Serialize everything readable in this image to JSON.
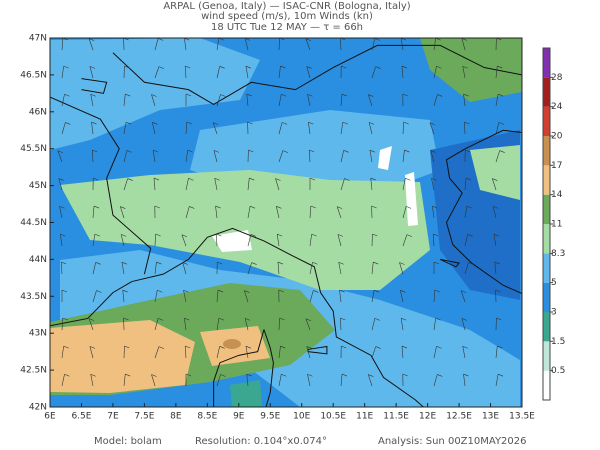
{
  "header": {
    "line1": "ARPAL (Genoa, Italy)  —  ISAC-CNR (Bologna, Italy)",
    "line2": "wind speed (m/s), 10m Winds (kn)",
    "line3": "18 UTC Tue 12 MAY  —  τ = 66h"
  },
  "map": {
    "xlim": [
      6,
      13.5
    ],
    "ylim": [
      42,
      47
    ],
    "xticks": [
      {
        "value": 6,
        "label": "6E"
      },
      {
        "value": 6.5,
        "label": "6.5E"
      },
      {
        "value": 7,
        "label": "7E"
      },
      {
        "value": 7.5,
        "label": "7.5E"
      },
      {
        "value": 8,
        "label": "8E"
      },
      {
        "value": 8.5,
        "label": "8.5E"
      },
      {
        "value": 9,
        "label": "9E"
      },
      {
        "value": 9.5,
        "label": "9.5E"
      },
      {
        "value": 10,
        "label": "10E"
      },
      {
        "value": 10.5,
        "label": "10.5E"
      },
      {
        "value": 11,
        "label": "11E"
      },
      {
        "value": 11.5,
        "label": "11.5E"
      },
      {
        "value": 12,
        "label": "12E"
      },
      {
        "value": 12.5,
        "label": "12.5E"
      },
      {
        "value": 13,
        "label": "13E"
      },
      {
        "value": 13.5,
        "label": "13.5E"
      }
    ],
    "yticks": [
      {
        "value": 42,
        "label": "42N"
      },
      {
        "value": 42.5,
        "label": "42.5N"
      },
      {
        "value": 43,
        "label": "43N"
      },
      {
        "value": 43.5,
        "label": "43.5N"
      },
      {
        "value": 44,
        "label": "44N"
      },
      {
        "value": 44.5,
        "label": "44.5N"
      },
      {
        "value": 45,
        "label": "45N"
      },
      {
        "value": 45.5,
        "label": "45.5N"
      },
      {
        "value": 46,
        "label": "46N"
      },
      {
        "value": 46.5,
        "label": "46.5N"
      },
      {
        "value": 47,
        "label": "47N"
      }
    ]
  },
  "colorbar": {
    "levels": [
      0.5,
      1.5,
      3,
      5,
      8.3,
      11,
      14,
      17,
      20,
      24,
      28
    ],
    "colors": [
      "#ffffff",
      "#bfe6d8",
      "#3aa890",
      "#2a8fe0",
      "#5fb8ec",
      "#a4dca4",
      "#6aaa5a",
      "#f0c080",
      "#c89050",
      "#d04030",
      "#a02020",
      "#8030b0"
    ]
  },
  "footer": {
    "model": "Model:  bolam",
    "resolution": "Resolution:  0.104°x0.074°",
    "analysis": "Analysis:  Sun  00Z10MAY2026"
  }
}
